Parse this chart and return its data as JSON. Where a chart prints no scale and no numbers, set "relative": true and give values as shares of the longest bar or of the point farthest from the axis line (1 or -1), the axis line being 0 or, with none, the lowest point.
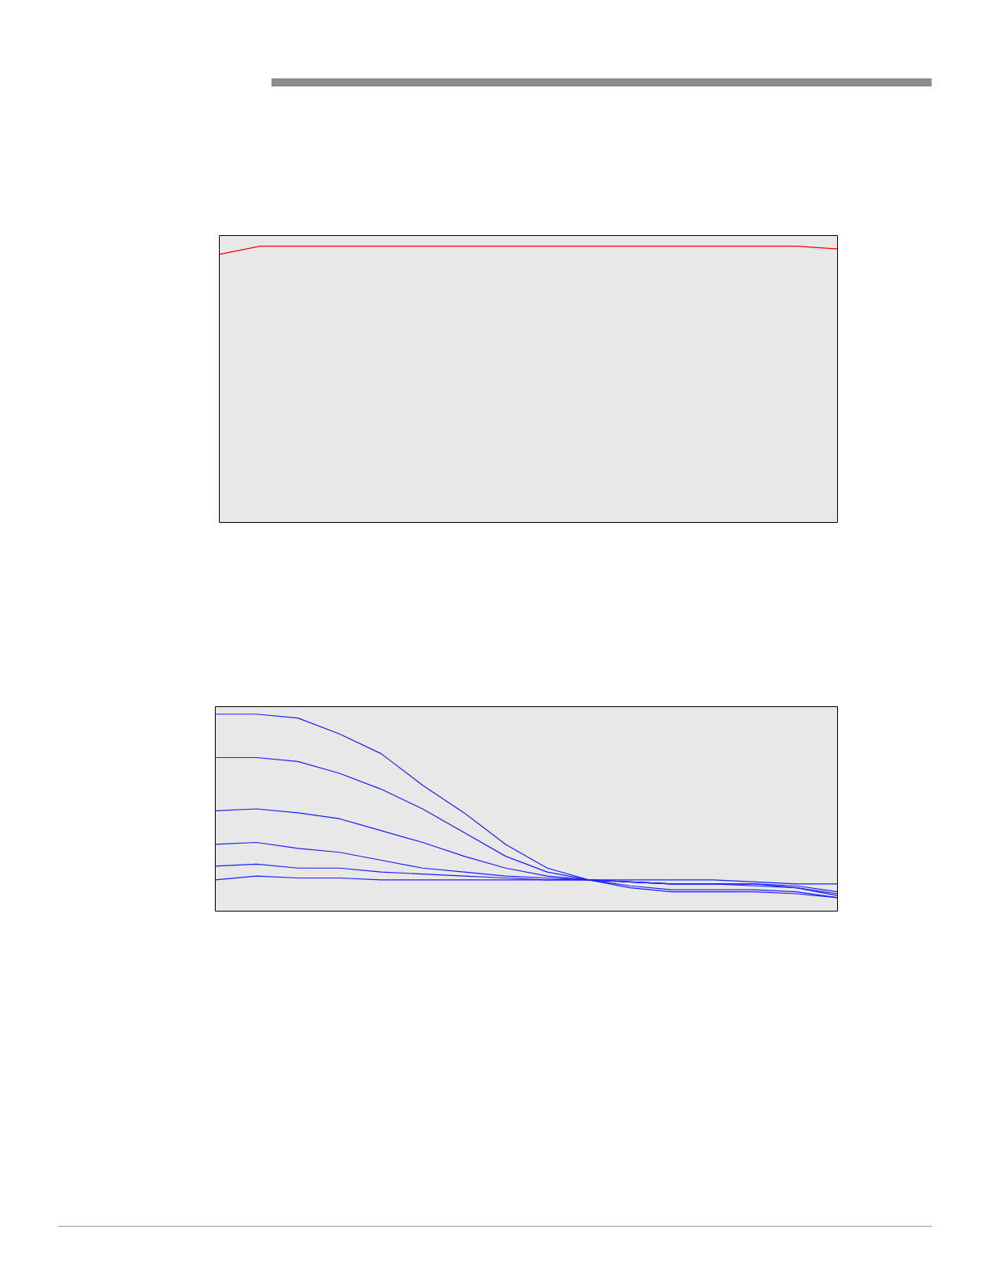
{
  "chart_data": [
    {
      "type": "line",
      "relative": true,
      "categories": [
        null,
        null,
        null,
        null,
        null,
        null,
        null,
        null,
        null,
        null,
        null,
        null,
        null,
        null,
        null,
        null
      ],
      "tick_labels": false,
      "legend": false,
      "marker": "none",
      "line_style": "solid",
      "series": [
        {
          "color": "#ff0000",
          "values": [
            0.97,
            1,
            1,
            1,
            1,
            1,
            1,
            1,
            1,
            1,
            1,
            1,
            1,
            1,
            1,
            0.99
          ]
        }
      ]
    },
    {
      "type": "line",
      "relative": true,
      "categories": [
        null,
        null,
        null,
        null,
        null,
        null,
        null,
        null,
        null,
        null,
        null,
        null,
        null,
        null,
        null,
        null
      ],
      "tick_labels": false,
      "legend": false,
      "marker": "none",
      "line_style": "solid",
      "series": [
        {
          "color": "#2020ff",
          "values": [
            1.0,
            1.0,
            0.98,
            0.9,
            0.8,
            0.64,
            0.5,
            0.34,
            0.22,
            0.16,
            0.15,
            0.14,
            0.14,
            0.14,
            0.12,
            0.08
          ]
        },
        {
          "color": "#2020ff",
          "values": [
            0.78,
            0.78,
            0.76,
            0.7,
            0.62,
            0.52,
            0.4,
            0.28,
            0.2,
            0.16,
            0.15,
            0.14,
            0.14,
            0.13,
            0.12,
            0.09
          ]
        },
        {
          "color": "#2020ff",
          "values": [
            0.51,
            0.52,
            0.5,
            0.47,
            0.41,
            0.35,
            0.28,
            0.22,
            0.18,
            0.16,
            0.15,
            0.14,
            0.14,
            0.14,
            0.13,
            0.1
          ]
        },
        {
          "color": "#2020ff",
          "values": [
            0.34,
            0.35,
            0.32,
            0.3,
            0.26,
            0.22,
            0.2,
            0.18,
            0.17,
            0.16,
            0.13,
            0.11,
            0.11,
            0.11,
            0.1,
            0.07
          ]
        },
        {
          "color": "#2020ff",
          "values": [
            0.23,
            0.24,
            0.22,
            0.22,
            0.2,
            0.19,
            0.18,
            0.17,
            0.16,
            0.16,
            0.12,
            0.1,
            0.1,
            0.1,
            0.09,
            0.07
          ]
        },
        {
          "color": "#2020ff",
          "values": [
            0.16,
            0.18,
            0.17,
            0.17,
            0.16,
            0.16,
            0.16,
            0.16,
            0.16,
            0.16,
            0.16,
            0.16,
            0.16,
            0.15,
            0.14,
            0.14
          ]
        }
      ]
    }
  ]
}
